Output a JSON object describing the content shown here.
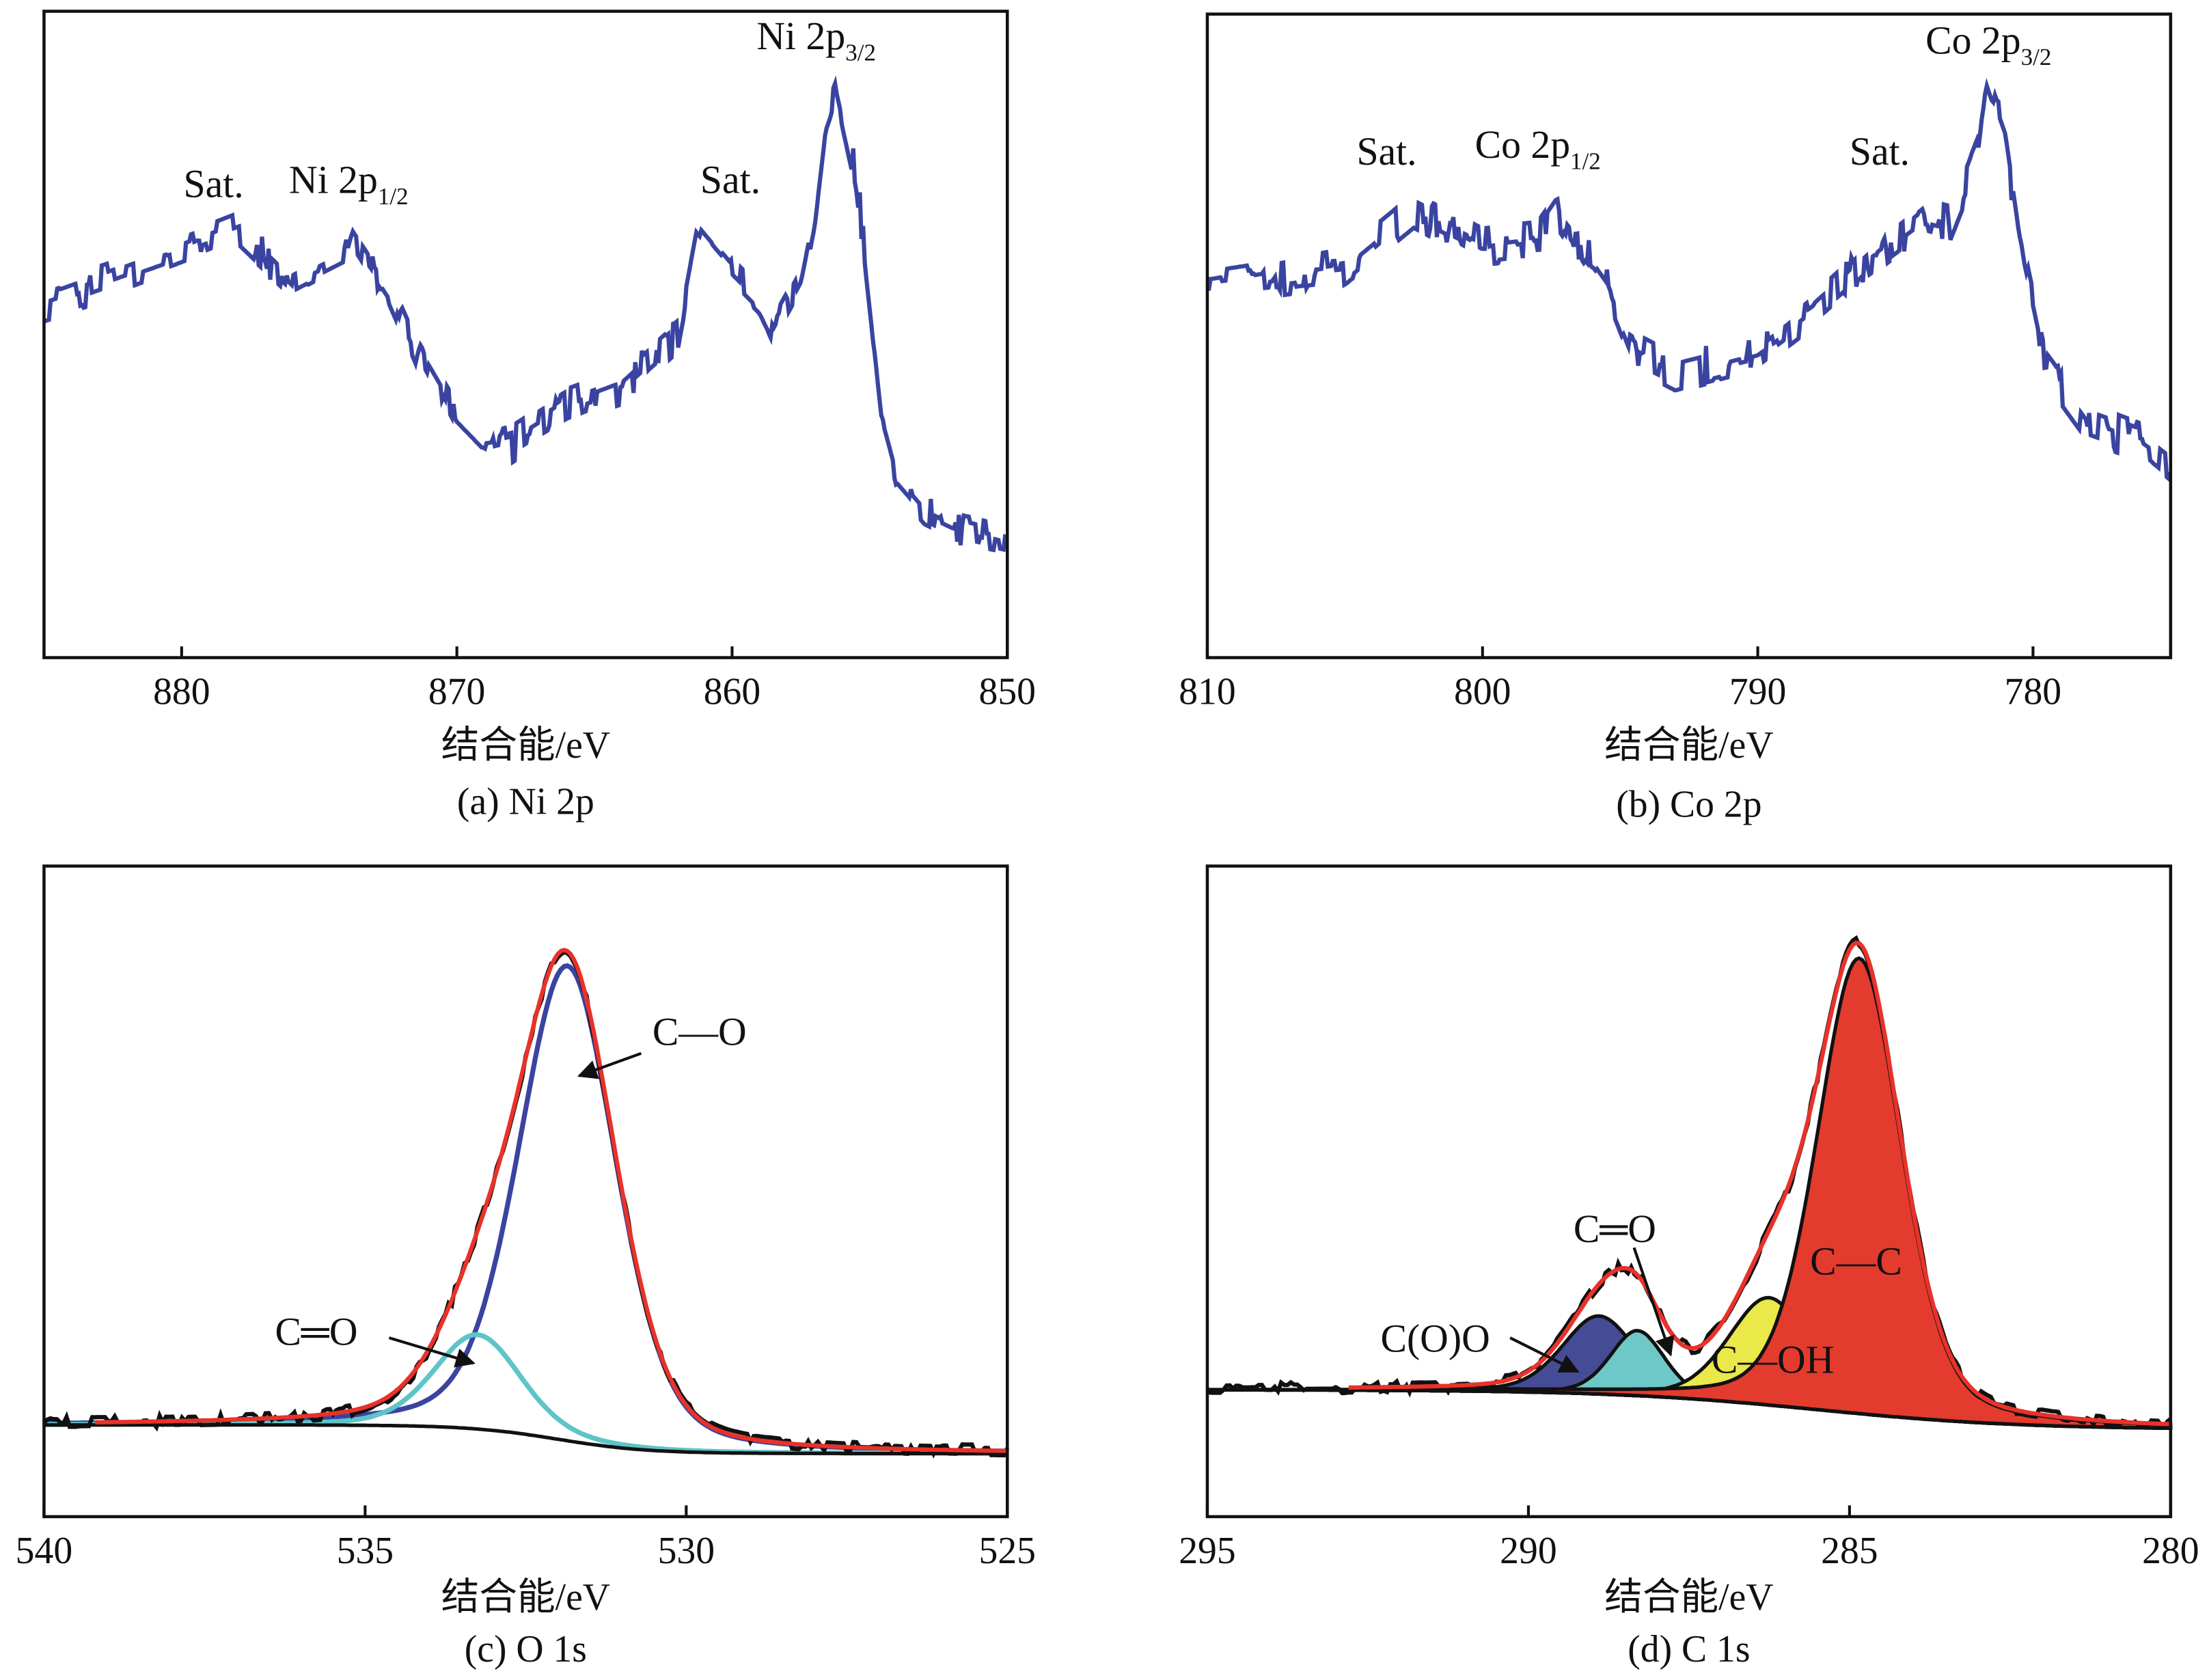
{
  "chart_data": [
    {
      "type": "line",
      "title": "(a) Ni 2p",
      "xlabel": "结合能/eV",
      "ylabel": "",
      "xlim": [
        885,
        850
      ],
      "ylim": [
        0,
        100
      ],
      "xticks": [
        "880",
        "870",
        "860",
        "850"
      ],
      "grid": false,
      "line_color": "#3a44a0",
      "series": [
        {
          "x": [
            885,
            880,
            877.9,
            876,
            874,
            873.8,
            872.5,
            871.5,
            870,
            869,
            868,
            866,
            864,
            862,
            861.3,
            860,
            859,
            858.5,
            857.5,
            857,
            856.6,
            856.2,
            855.5,
            855,
            854.5,
            854,
            853,
            852,
            850
          ],
          "y": [
            54.9,
            62.5,
            66,
            58.2,
            62.5,
            65.5,
            57.1,
            47.3,
            36.4,
            32.0,
            33.1,
            38.6,
            41.8,
            49.5,
            65.8,
            59.3,
            54.9,
            50.5,
            58.2,
            69.1,
            84,
            88.7,
            75,
            55,
            35,
            27,
            22,
            20,
            18
          ]
        }
      ],
      "annotations": [
        {
          "text": "Sat.",
          "sub": ""
        },
        {
          "text": "Ni 2p",
          "sub": "1/2"
        },
        {
          "text": "Sat.",
          "sub": ""
        },
        {
          "text": "Ni 2p",
          "sub": "3/2"
        }
      ]
    },
    {
      "type": "line",
      "title": "(b) Co 2p",
      "xlabel": "结合能/eV",
      "ylabel": "",
      "xlim": [
        810,
        775
      ],
      "ylim": [
        0,
        100
      ],
      "xticks": [
        "810",
        "800",
        "790",
        "780"
      ],
      "grid": false,
      "line_color": "#3a44a0",
      "series": [
        {
          "x": [
            810,
            805,
            802.5,
            800,
            798,
            797.3,
            795.5,
            794.5,
            793,
            790,
            788,
            786,
            784,
            783,
            782,
            781.7,
            781,
            780.5,
            779.5,
            778,
            776,
            775
          ],
          "y": [
            57.3,
            60.6,
            69.4,
            63.9,
            65.0,
            69.4,
            58.4,
            47.5,
            44.2,
            47.5,
            54.0,
            61.7,
            68.3,
            67.2,
            78.1,
            89.1,
            80.3,
            65.0,
            45.3,
            36.5,
            33.3,
            30.0
          ]
        }
      ],
      "annotations": [
        {
          "text": "Sat.",
          "sub": ""
        },
        {
          "text": "Co 2p",
          "sub": "1/2"
        },
        {
          "text": "Sat.",
          "sub": ""
        },
        {
          "text": "Co 2p",
          "sub": "3/2"
        }
      ]
    },
    {
      "type": "line",
      "title": "(c) O 1s",
      "xlabel": "结合能/eV",
      "ylabel": "",
      "xlim": [
        540,
        525
      ],
      "ylim": [
        0,
        100
      ],
      "xticks": [
        "540",
        "535",
        "530",
        "525"
      ],
      "grid": false,
      "background": {
        "high": 14.1,
        "low": 9.7,
        "center": 532.0,
        "width": 0.7
      },
      "components": [
        {
          "name": "C—O",
          "center": 531.85,
          "fwhm": 1.8,
          "amplitude": 73,
          "color": "#3a44a0"
        },
        {
          "name": "C═O",
          "center": 533.25,
          "fwhm": 1.6,
          "amplitude": 14.5,
          "color": "#5ec4c8"
        }
      ],
      "envelope_color": "#e8322a",
      "data_color": "#111111",
      "annotations": [
        {
          "text": "C—O",
          "sub": ""
        },
        {
          "text": "C═O",
          "sub": ""
        }
      ]
    },
    {
      "type": "area",
      "title": "(d) C 1s",
      "xlabel": "结合能/eV",
      "ylabel": "",
      "xlim": [
        295,
        280
      ],
      "ylim": [
        0,
        100
      ],
      "xticks": [
        "295",
        "290",
        "285",
        "280"
      ],
      "grid": false,
      "background": {
        "high": 19.5,
        "low": 13.4,
        "center": 285.5,
        "width": 1.6
      },
      "components": [
        {
          "name": "C(O)O",
          "center": 288.9,
          "fwhm": 1.35,
          "amplitude": 12,
          "color": "#454c96"
        },
        {
          "name": "C═O",
          "center": 288.3,
          "fwhm": 1.0,
          "amplitude": 10,
          "color": "#6fc8c8"
        },
        {
          "name": "C—OH",
          "center": 286.25,
          "fwhm": 1.5,
          "amplitude": 16.5,
          "color": "#ebe84a"
        },
        {
          "name": "C—C",
          "center": 284.85,
          "fwhm": 1.55,
          "amplitude": 70,
          "color": "#e33b2e"
        }
      ],
      "envelope_color": "#e8322a",
      "data_color": "#111111",
      "annotations": [
        {
          "text": "C═O",
          "sub": ""
        },
        {
          "text": "C—C",
          "sub": ""
        },
        {
          "text": "C—OH",
          "sub": ""
        },
        {
          "text": "C(O)O",
          "sub": ""
        }
      ]
    }
  ]
}
